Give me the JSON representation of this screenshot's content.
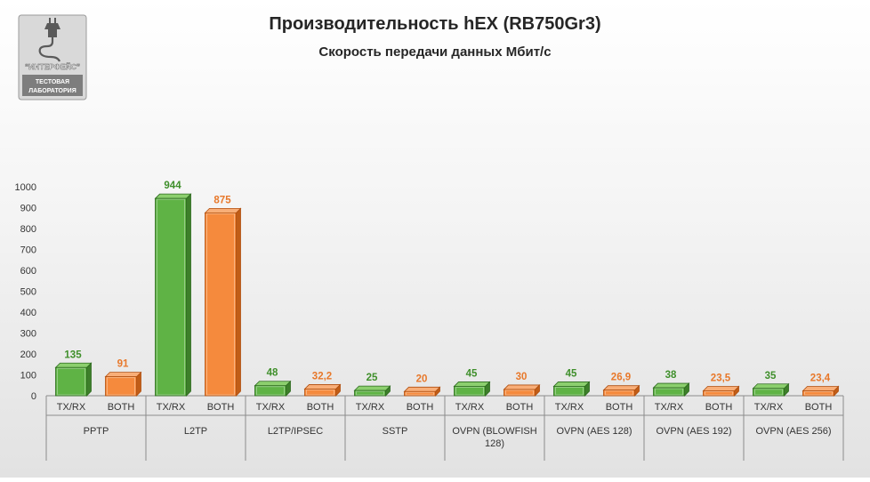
{
  "logo": {
    "name": "“ИНТЕРФЕЙС”",
    "line1": "ТЕСТОВАЯ",
    "line2": "ЛАБОРАТОРИЯ"
  },
  "chart_data": {
    "type": "bar",
    "title": "Производительность hEX (RB750Gr3)",
    "subtitle": "Скорость передачи данных Мбит/с",
    "ylim": [
      0,
      1000
    ],
    "yticks": [
      "0",
      "100",
      "200",
      "300",
      "400",
      "500",
      "600",
      "700",
      "800",
      "900",
      "1000"
    ],
    "grid": false,
    "groups": [
      {
        "label": [
          "PPTP"
        ],
        "bars": [
          {
            "category": "TX/RX",
            "value": 135,
            "label": "135"
          },
          {
            "category": "BOTH",
            "value": 91,
            "label": "91"
          }
        ]
      },
      {
        "label": [
          "L2TP"
        ],
        "bars": [
          {
            "category": "TX/RX",
            "value": 944,
            "label": "944"
          },
          {
            "category": "BOTH",
            "value": 875,
            "label": "875"
          }
        ]
      },
      {
        "label": [
          "L2TP/IPSEC"
        ],
        "bars": [
          {
            "category": "TX/RX",
            "value": 48,
            "label": "48"
          },
          {
            "category": "BOTH",
            "value": 32.2,
            "label": "32,2"
          }
        ]
      },
      {
        "label": [
          "SSTP"
        ],
        "bars": [
          {
            "category": "TX/RX",
            "value": 25,
            "label": "25"
          },
          {
            "category": "BOTH",
            "value": 20,
            "label": "20"
          }
        ]
      },
      {
        "label": [
          "OVPN (BLOWFISH",
          "128)"
        ],
        "bars": [
          {
            "category": "TX/RX",
            "value": 45,
            "label": "45"
          },
          {
            "category": "BOTH",
            "value": 30,
            "label": "30"
          }
        ]
      },
      {
        "label": [
          "OVPN (AES 128)"
        ],
        "bars": [
          {
            "category": "TX/RX",
            "value": 45,
            "label": "45"
          },
          {
            "category": "BOTH",
            "value": 26.9,
            "label": "26,9"
          }
        ]
      },
      {
        "label": [
          "OVPN (AES 192)"
        ],
        "bars": [
          {
            "category": "TX/RX",
            "value": 38,
            "label": "38"
          },
          {
            "category": "BOTH",
            "value": 23.5,
            "label": "23,5"
          }
        ]
      },
      {
        "label": [
          "OVPN (AES 256)"
        ],
        "bars": [
          {
            "category": "TX/RX",
            "value": 35,
            "label": "35"
          },
          {
            "category": "BOTH",
            "value": 23.4,
            "label": "23,4"
          }
        ]
      }
    ],
    "colors": {
      "TX/RX": {
        "front": "#5fb345",
        "side": "#3d7f2a",
        "top": "#8ccf6e",
        "edge": "#2d6a1f",
        "label": "#3f8f2b"
      },
      "BOTH": {
        "front": "#f58a3d",
        "side": "#c15d17",
        "top": "#f8ae78",
        "edge": "#b04f10",
        "label": "#e8782a"
      }
    }
  }
}
